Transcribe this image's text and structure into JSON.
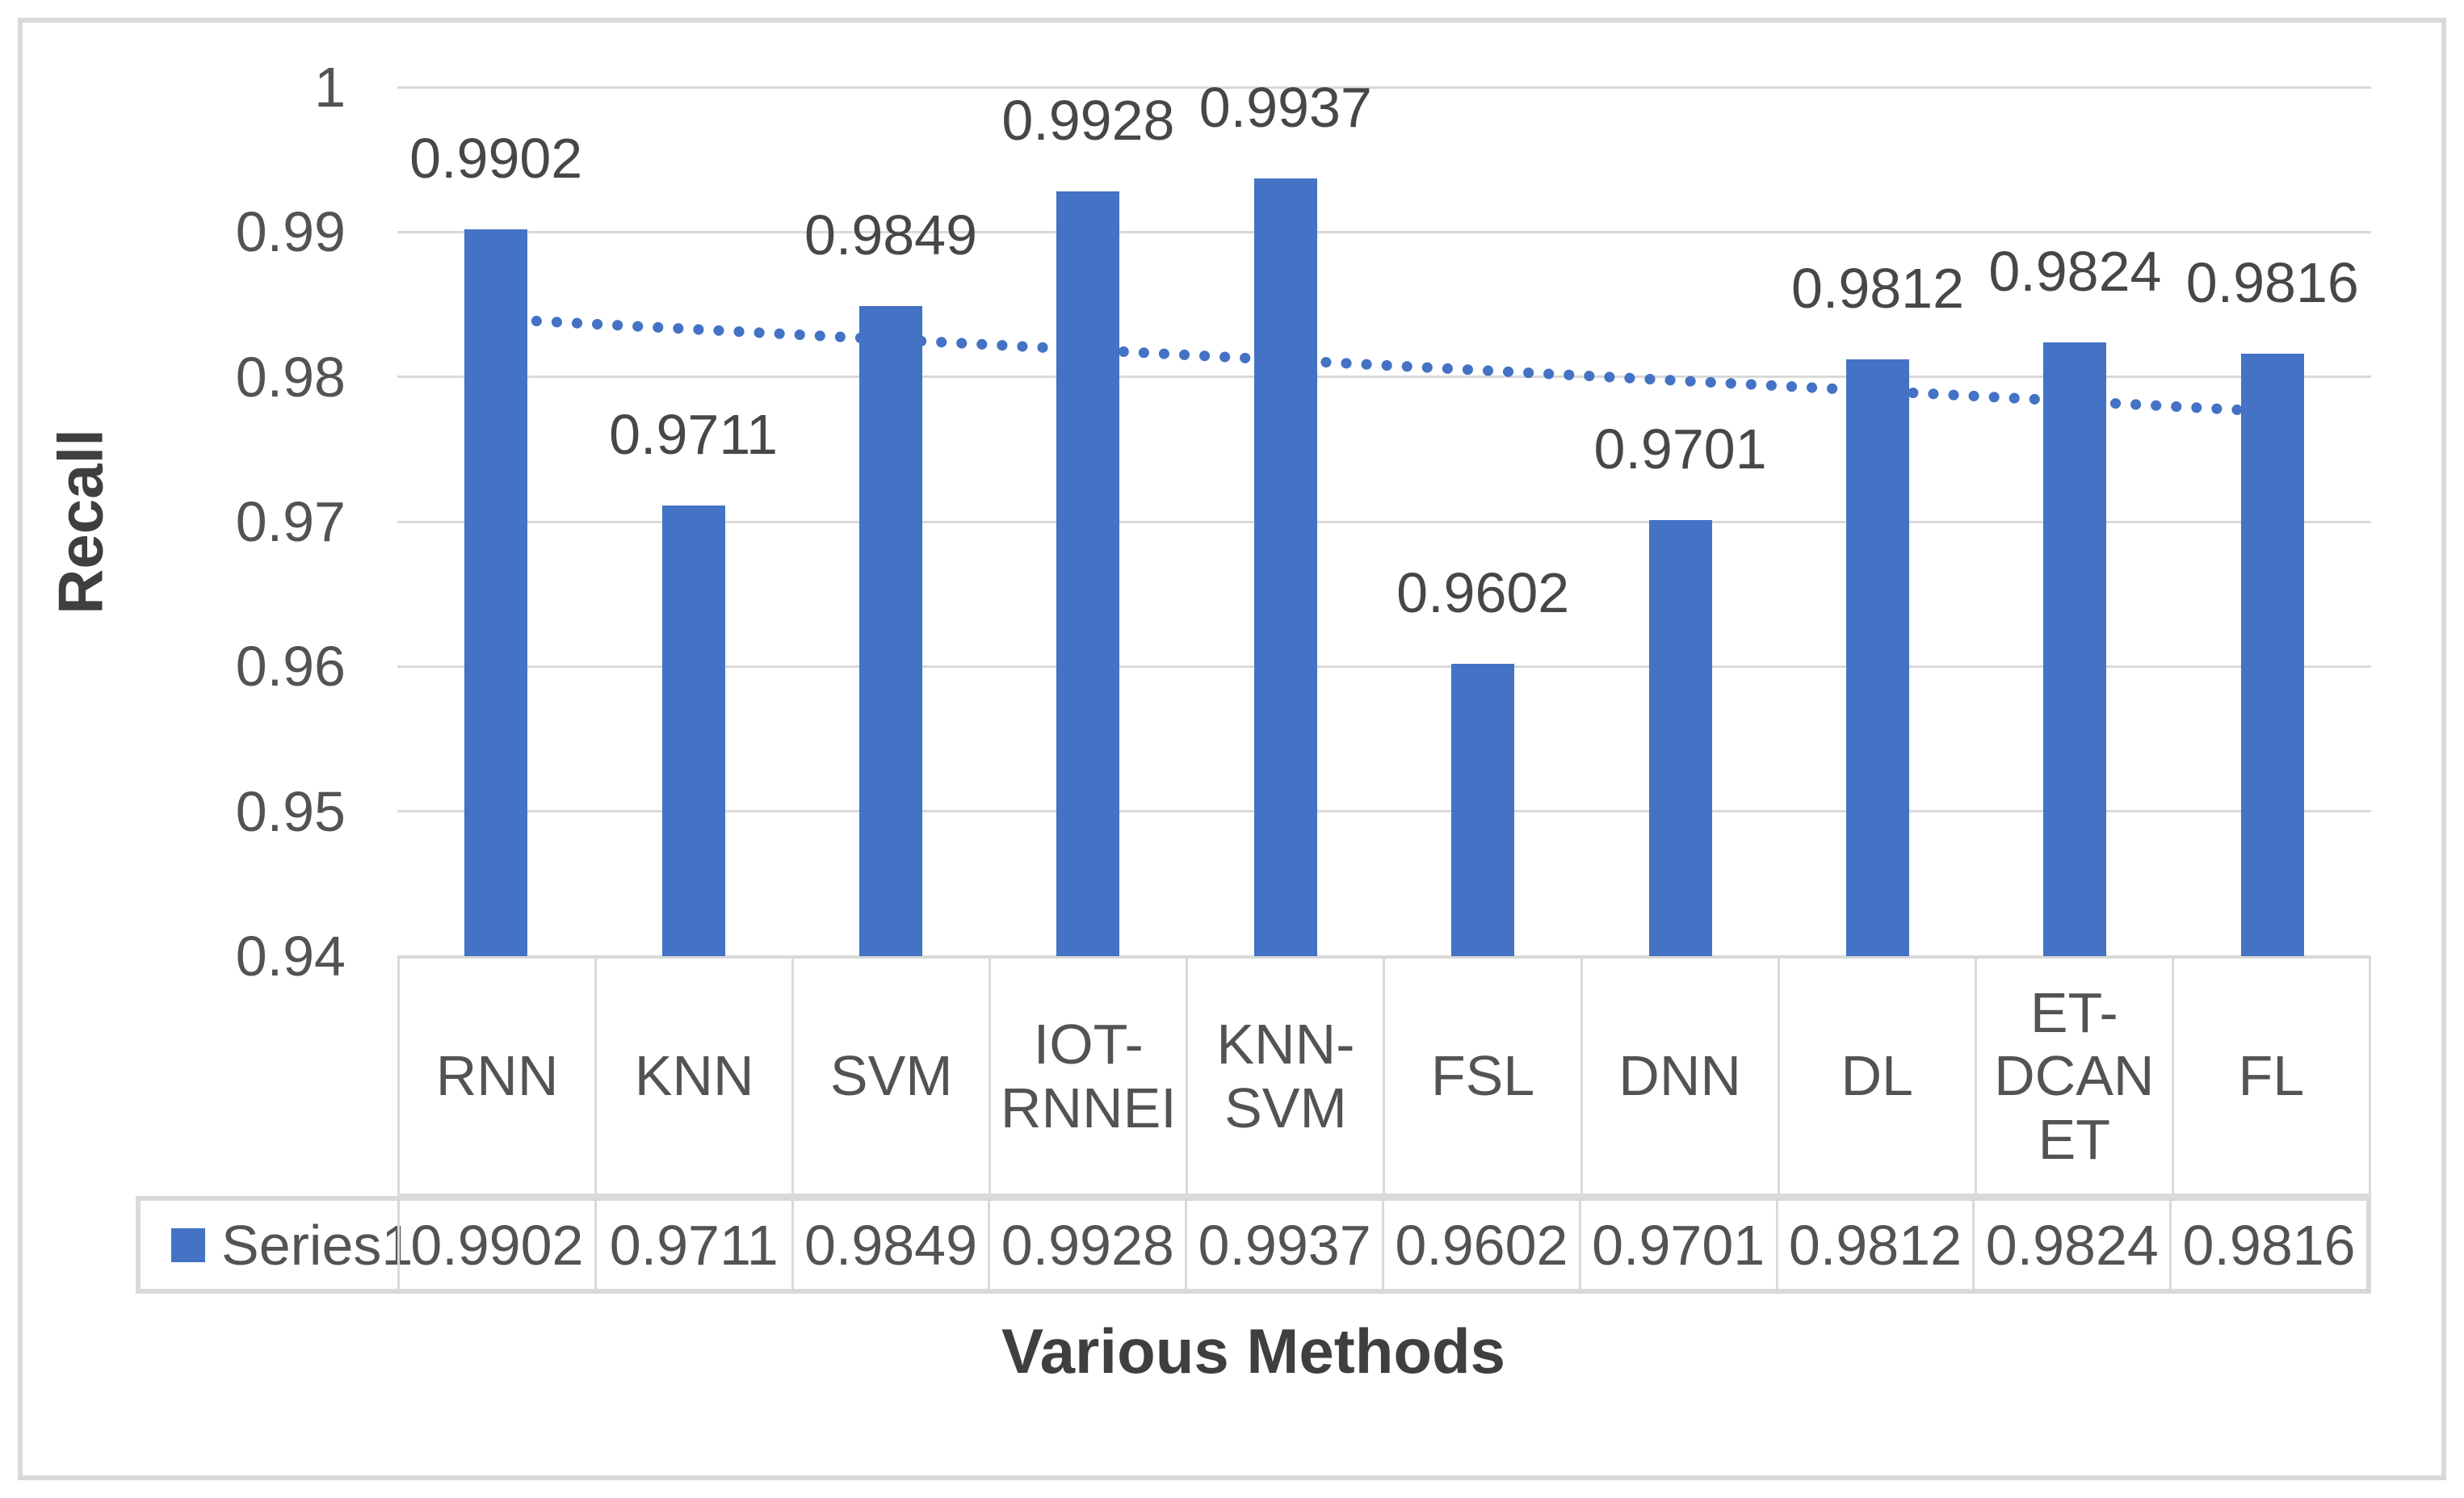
{
  "figure": {
    "background_color": "#FFFFFF",
    "border_color": "#D9D9D9"
  },
  "chart_data": {
    "type": "bar",
    "title": "",
    "xlabel": "Various Methods",
    "ylabel": "Recall",
    "categories": [
      "RNN",
      "KNN",
      "SVM",
      "IOT-RNNEI",
      "KNN-SVM",
      "FSL",
      "DNN",
      "DL",
      "ET-DCANET",
      "FL"
    ],
    "category_display": [
      "RNN",
      "KNN",
      "SVM",
      "IOT-\nRNNEI",
      "KNN-\nSVM",
      "FSL",
      "DNN",
      "DL",
      "ET-\nDCAN\nET",
      "FL"
    ],
    "series": [
      {
        "name": "Series1",
        "color": "#4472C4",
        "values": [
          0.9902,
          0.9711,
          0.9849,
          0.9928,
          0.9937,
          0.9602,
          0.9701,
          0.9812,
          0.9824,
          0.9816
        ]
      }
    ],
    "value_labels": [
      "0.9902",
      "0.9711",
      "0.9849",
      "0.9928",
      "0.9937",
      "0.9602",
      "0.9701",
      "0.9812",
      "0.9824",
      "0.9816"
    ],
    "ylim": [
      0.94,
      1.0
    ],
    "ytick_step": 0.01,
    "yticks": [
      {
        "value": 1.0,
        "label": "1"
      },
      {
        "value": 0.99,
        "label": "0.99"
      },
      {
        "value": 0.98,
        "label": "0.98"
      },
      {
        "value": 0.97,
        "label": "0.97"
      },
      {
        "value": 0.96,
        "label": "0.96"
      },
      {
        "value": 0.95,
        "label": "0.95"
      },
      {
        "value": 0.94,
        "label": "0.94"
      }
    ],
    "grid": true,
    "gridline_color": "#D9D9D9",
    "axis_text_color": "#535353",
    "title_text_color": "#3F3F3F",
    "bar_color": "#4472C4",
    "trendline": {
      "type": "linear",
      "style": "dotted",
      "color": "#4472C4",
      "start_value": 0.984,
      "end_value": 0.9776
    },
    "legend": {
      "label": "Series1",
      "marker_color": "#4472C4",
      "position": "bottom-table-stub"
    }
  }
}
